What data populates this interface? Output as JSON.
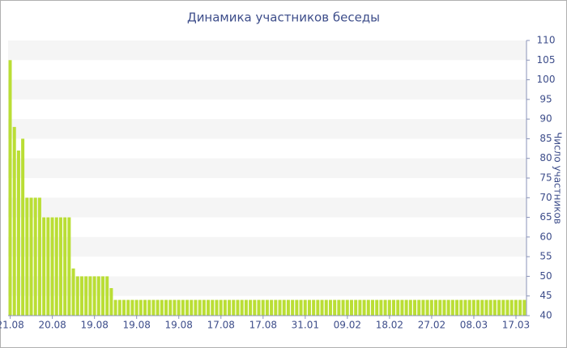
{
  "chart_data": {
    "type": "bar",
    "title": "Динамика участников беседы",
    "y_label": "Число участников",
    "categories": [
      "21.08",
      null,
      null,
      null,
      null,
      null,
      null,
      null,
      null,
      null,
      "20.08",
      null,
      null,
      null,
      null,
      null,
      null,
      null,
      null,
      null,
      "19.08",
      null,
      null,
      null,
      null,
      null,
      null,
      null,
      null,
      null,
      "19.08",
      null,
      null,
      null,
      null,
      null,
      null,
      null,
      null,
      null,
      "19.08",
      null,
      null,
      null,
      null,
      null,
      null,
      null,
      null,
      null,
      "17.08",
      null,
      null,
      null,
      null,
      null,
      null,
      null,
      null,
      null,
      "17.08",
      null,
      null,
      null,
      null,
      null,
      null,
      null,
      null,
      null,
      "31.01",
      null,
      null,
      null,
      null,
      null,
      null,
      null,
      null,
      null,
      "09.02",
      null,
      null,
      null,
      null,
      null,
      null,
      null,
      null,
      null,
      "18.02",
      null,
      null,
      null,
      null,
      null,
      null,
      null,
      null,
      null,
      "27.02",
      null,
      null,
      null,
      null,
      null,
      null,
      null,
      null,
      null,
      "08.03",
      null,
      null,
      null,
      null,
      null,
      null,
      null,
      null,
      null,
      "17.03",
      null,
      null
    ],
    "values": [
      105,
      88,
      82,
      85,
      70,
      70,
      70,
      70,
      65,
      65,
      65,
      65,
      65,
      65,
      65,
      52,
      50,
      50,
      50,
      50,
      50,
      50,
      50,
      50,
      47,
      44,
      44,
      44,
      44,
      44,
      44,
      44,
      44,
      44,
      44,
      44,
      44,
      44,
      44,
      44,
      44,
      44,
      44,
      44,
      44,
      44,
      44,
      44,
      44,
      44,
      44,
      44,
      44,
      44,
      44,
      44,
      44,
      44,
      44,
      44,
      44,
      44,
      44,
      44,
      44,
      44,
      44,
      44,
      44,
      44,
      44,
      44,
      44,
      44,
      44,
      44,
      44,
      44,
      44,
      44,
      44,
      44,
      44,
      44,
      44,
      44,
      44,
      44,
      44,
      44,
      44,
      44,
      44,
      44,
      44,
      44,
      44,
      44,
      44,
      44,
      44,
      44,
      44,
      44,
      44,
      44,
      44,
      44,
      44,
      44,
      44,
      44,
      44,
      44,
      44,
      44,
      44,
      44,
      44,
      44,
      44,
      44,
      44
    ],
    "color": "#bade35",
    "ylim": [
      40,
      110
    ],
    "yticks": [
      40,
      45,
      50,
      55,
      60,
      65,
      70,
      75,
      80,
      85,
      90,
      95,
      100,
      105,
      110
    ],
    "y_axis_side": "right",
    "striped_bands": true
  }
}
